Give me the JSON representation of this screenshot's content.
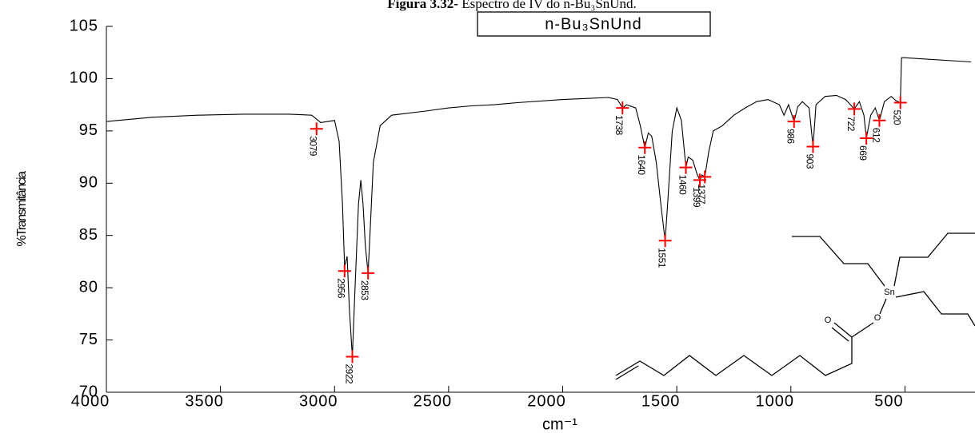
{
  "chart_data": {
    "type": "line",
    "title_bold": "Figura 3.32-",
    "title": "Espectro de IV do n-Bu₃SnUnd.",
    "legend_label": "n-Bu₃SnUnd",
    "x_label": "cm⁻¹",
    "y_label": "%Transmitância",
    "xlim": [
      4000,
      200
    ],
    "ylim": [
      70,
      105
    ],
    "xticks": [
      4000,
      3500,
      3000,
      2500,
      2000,
      1500,
      1000,
      500
    ],
    "yticks": [
      70,
      75,
      80,
      85,
      90,
      95,
      100,
      105
    ],
    "series": [
      {
        "color": "#000000",
        "x": [
          4000,
          3800,
          3600,
          3400,
          3200,
          3100,
          3060,
          3000,
          2980,
          2965,
          2956,
          2945,
          2935,
          2922,
          2910,
          2895,
          2885,
          2875,
          2865,
          2853,
          2845,
          2830,
          2800,
          2750,
          2600,
          2500,
          2400,
          2300,
          2200,
          2000,
          1900,
          1800,
          1760,
          1738,
          1720,
          1680,
          1660,
          1640,
          1625,
          1610,
          1590,
          1570,
          1551,
          1540,
          1520,
          1500,
          1480,
          1460,
          1450,
          1430,
          1410,
          1399,
          1390,
          1377,
          1360,
          1340,
          1300,
          1250,
          1200,
          1150,
          1100,
          1050,
          1030,
          1010,
          986,
          970,
          950,
          920,
          903,
          890,
          850,
          800,
          760,
          722,
          700,
          680,
          669,
          650,
          630,
          612,
          590,
          560,
          540,
          520,
          515,
          500,
          210
        ],
        "values": [
          95.9,
          96.3,
          96.5,
          96.6,
          96.6,
          96.5,
          95.8,
          96.0,
          94,
          88,
          82,
          83,
          78,
          73.4,
          80,
          88,
          90.3,
          88,
          84,
          81.4,
          85,
          92,
          95.5,
          96.5,
          96.9,
          97.2,
          97.4,
          97.5,
          97.7,
          98.0,
          98.1,
          98.2,
          98.0,
          97.2,
          97.5,
          97.2,
          95.5,
          93.4,
          94.8,
          94.5,
          92,
          88,
          84.5,
          88,
          95,
          97.2,
          96,
          91.5,
          92.5,
          92.2,
          90.8,
          90.3,
          90.8,
          90.6,
          93,
          95,
          95.5,
          96.5,
          97.2,
          97.8,
          98,
          97.5,
          96.5,
          97.5,
          95.9,
          97.3,
          97.8,
          97.2,
          93.5,
          97.5,
          98.3,
          98.4,
          98,
          97.1,
          97.8,
          96.5,
          94.3,
          96.5,
          97.2,
          96.0,
          97.8,
          98.3,
          97.9,
          97.7,
          102.0,
          102.0,
          101.6
        ]
      }
    ],
    "peaks": {
      "color": "#ff0000",
      "x": [
        3079,
        2956,
        2922,
        2853,
        1738,
        1640,
        1551,
        1460,
        1399,
        1377,
        986,
        903,
        722,
        669,
        612,
        520
      ],
      "values": [
        95.2,
        81.6,
        73.4,
        81.4,
        97.2,
        93.4,
        84.5,
        91.5,
        90.3,
        90.6,
        95.9,
        93.5,
        97.1,
        94.3,
        96.0,
        97.7
      ]
    }
  },
  "structure": {
    "atoms": [
      "Sn",
      "O",
      "O"
    ]
  }
}
